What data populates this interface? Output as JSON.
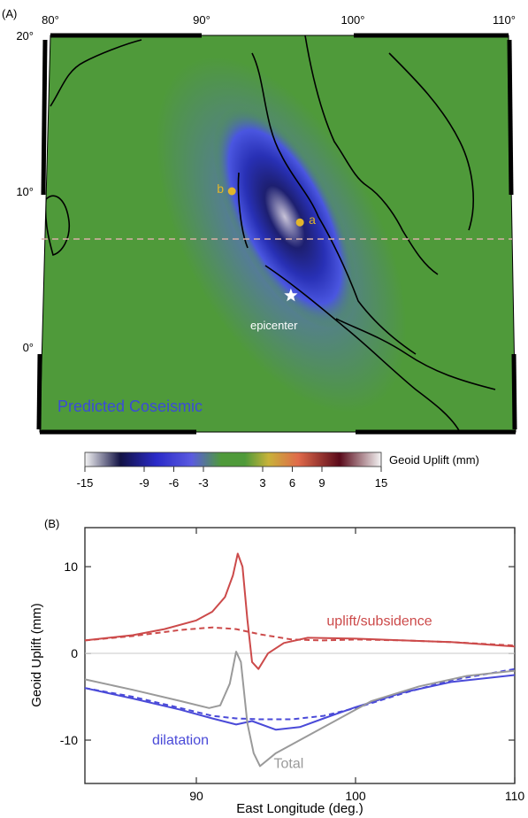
{
  "panel_a": {
    "panel_label": "(A)",
    "lon_ticks": [
      {
        "value": 80,
        "label": "80°"
      },
      {
        "value": 90,
        "label": "90°"
      },
      {
        "value": 100,
        "label": "100°"
      },
      {
        "value": 110,
        "label": "110°"
      }
    ],
    "lat_ticks": [
      {
        "value": 20,
        "label": "20°"
      },
      {
        "value": 10,
        "label": "10°"
      },
      {
        "value": 0,
        "label": "0°"
      }
    ],
    "points": [
      {
        "id": "b",
        "label": "b",
        "lon": 92,
        "lat": 10
      },
      {
        "id": "a",
        "label": "a",
        "lon": 96.5,
        "lat": 8
      }
    ],
    "epicenter": {
      "label": "epicenter",
      "lon": 95.9,
      "lat": 3.3
    },
    "section_latitude": 7.0,
    "overlay_text": "Predicted Coseismic",
    "colorbar": {
      "title": "Geoid Uplift (mm)",
      "ticks": [
        -15,
        -9,
        -6,
        -3,
        3,
        6,
        9,
        15
      ],
      "tick_labels": [
        "-15",
        "-9",
        "-6",
        "-3",
        "3",
        "6",
        "9",
        "15"
      ]
    },
    "colors": {
      "ocean_green": "#4f9a3a",
      "low_blue": "#3b3bd8",
      "text_blue": "#3b4bd8",
      "point_yellow": "#e1b52c"
    }
  },
  "chart_data": {
    "type": "line",
    "panel_label": "(B)",
    "xlabel": "East Longitude (deg.)",
    "ylabel": "Geoid Uplift (mm)",
    "xlim": [
      83,
      110
    ],
    "ylim": [
      -15,
      14.5
    ],
    "x_ticks": [
      90,
      100,
      110
    ],
    "y_ticks": [
      -10,
      0,
      10
    ],
    "zero_line": true,
    "series": [
      {
        "name": "uplift/subsidence",
        "color": "#cc4a4a",
        "style": "solid",
        "points": [
          [
            83,
            1.5
          ],
          [
            86,
            2.1
          ],
          [
            88,
            2.8
          ],
          [
            90,
            3.8
          ],
          [
            91,
            4.8
          ],
          [
            91.8,
            6.5
          ],
          [
            92.3,
            9
          ],
          [
            92.6,
            11.5
          ],
          [
            92.9,
            10
          ],
          [
            93.2,
            4
          ],
          [
            93.5,
            -1
          ],
          [
            93.9,
            -1.8
          ],
          [
            94.5,
            0
          ],
          [
            95.5,
            1.2
          ],
          [
            97,
            1.8
          ],
          [
            100,
            1.7
          ],
          [
            103,
            1.5
          ],
          [
            106,
            1.3
          ],
          [
            110,
            0.8
          ]
        ]
      },
      {
        "name": "",
        "color": "#cc4a4a",
        "style": "dashed",
        "points": [
          [
            83,
            1.5
          ],
          [
            86,
            2
          ],
          [
            89,
            2.7
          ],
          [
            91,
            3
          ],
          [
            92.5,
            2.8
          ],
          [
            94,
            2.2
          ],
          [
            96,
            1.6
          ],
          [
            98,
            1.5
          ],
          [
            100,
            1.6
          ],
          [
            103,
            1.5
          ],
          [
            106,
            1.3
          ],
          [
            110,
            0.9
          ]
        ]
      },
      {
        "name": "dilatation",
        "color": "#4a4ad8",
        "style": "solid",
        "points": [
          [
            83,
            -4
          ],
          [
            86,
            -5.2
          ],
          [
            89,
            -6.5
          ],
          [
            91,
            -7.5
          ],
          [
            92.5,
            -8.2
          ],
          [
            93.5,
            -7.8
          ],
          [
            95,
            -8.8
          ],
          [
            96.5,
            -8.5
          ],
          [
            98,
            -7.5
          ],
          [
            100,
            -6.2
          ],
          [
            103,
            -4.5
          ],
          [
            106,
            -3.3
          ],
          [
            110,
            -2.5
          ]
        ]
      },
      {
        "name": "",
        "color": "#4a4ad8",
        "style": "dashed",
        "points": [
          [
            83,
            -4
          ],
          [
            86,
            -5
          ],
          [
            89,
            -6.3
          ],
          [
            91,
            -7.2
          ],
          [
            92.5,
            -7.5
          ],
          [
            94,
            -7.6
          ],
          [
            96,
            -7.6
          ],
          [
            98,
            -7.2
          ],
          [
            100,
            -6.3
          ],
          [
            103,
            -4.6
          ],
          [
            106,
            -3.1
          ],
          [
            110,
            -1.8
          ]
        ]
      },
      {
        "name": "Total",
        "color": "#9a9a9a",
        "style": "solid",
        "points": [
          [
            83,
            -3
          ],
          [
            86,
            -4.2
          ],
          [
            89,
            -5.5
          ],
          [
            90.8,
            -6.3
          ],
          [
            91.5,
            -6
          ],
          [
            92.1,
            -3.5
          ],
          [
            92.5,
            0.2
          ],
          [
            92.8,
            -1
          ],
          [
            93.2,
            -8
          ],
          [
            93.6,
            -11.5
          ],
          [
            94,
            -13
          ],
          [
            95,
            -11.5
          ],
          [
            97,
            -9.5
          ],
          [
            99,
            -7.5
          ],
          [
            101,
            -5.5
          ],
          [
            104,
            -3.8
          ],
          [
            107,
            -2.6
          ],
          [
            110,
            -2
          ]
        ]
      }
    ],
    "annotations": [
      {
        "text": "uplift/subsidence",
        "x": 101.5,
        "y": 3.2,
        "color": "#cc4a4a"
      },
      {
        "text": "dilatation",
        "x": 89,
        "y": -10.5,
        "color": "#4a4ad8"
      },
      {
        "text": "Total",
        "x": 95.8,
        "y": -13.2,
        "color": "#9a9a9a"
      }
    ]
  }
}
